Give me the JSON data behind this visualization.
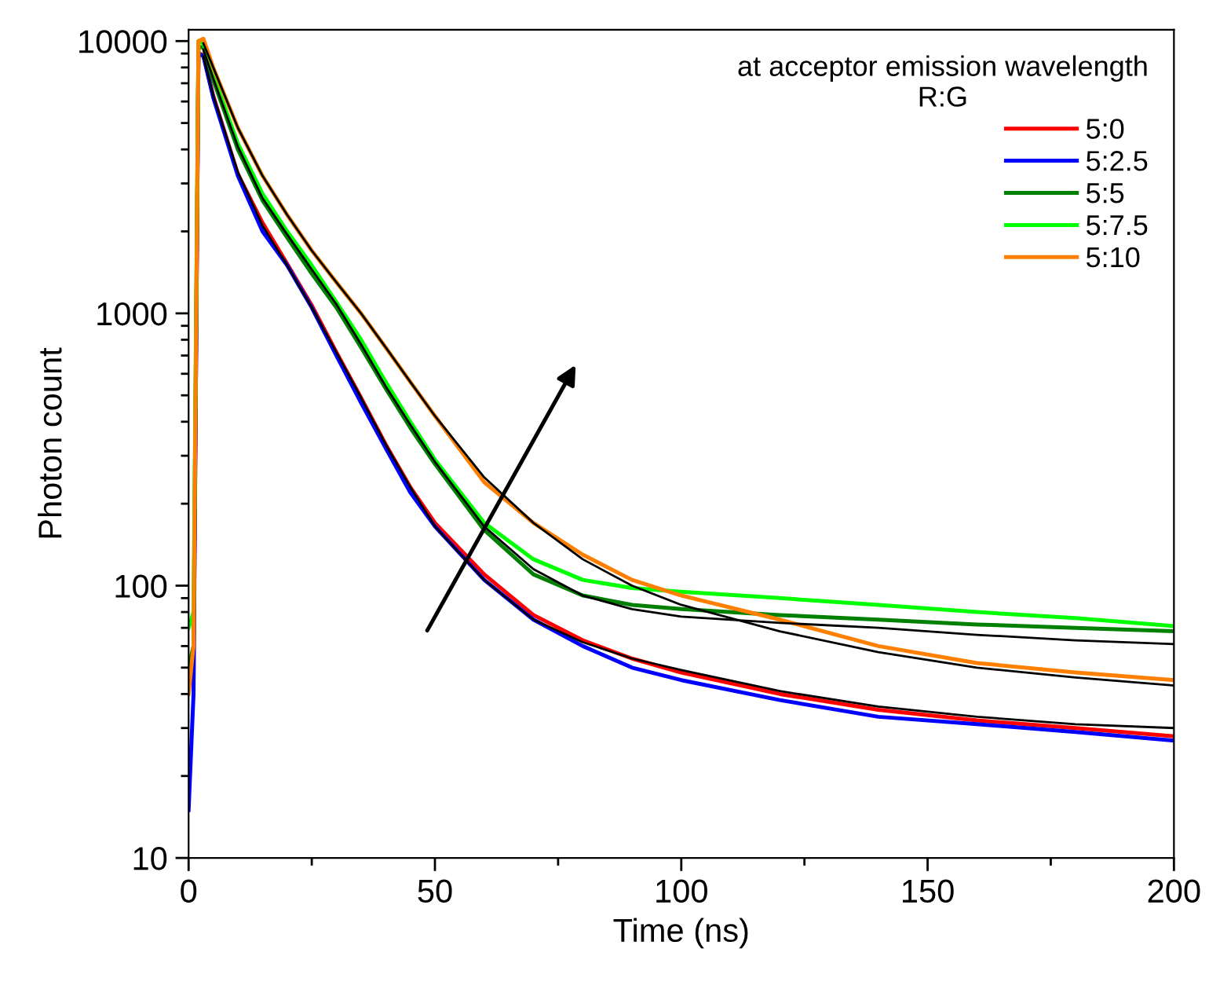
{
  "chart_data": {
    "type": "line",
    "xlabel": "Time (ns)",
    "ylabel": "Photon count",
    "legend_title": "at acceptor emission wavelength\nR:G",
    "log": "y",
    "xlim": [
      0,
      200
    ],
    "ylim": [
      10,
      11000
    ],
    "xticks": [
      0,
      50,
      100,
      150,
      200
    ],
    "yticks": [
      10,
      100,
      1000,
      10000
    ],
    "grid": false,
    "legend": "top right",
    "marker": "none",
    "line_style": "solid",
    "x": [
      0,
      1,
      2,
      3,
      5,
      10,
      15,
      20,
      25,
      30,
      35,
      40,
      45,
      50,
      60,
      70,
      80,
      90,
      100,
      120,
      140,
      160,
      180,
      200
    ],
    "series": [
      {
        "name": "5:0",
        "color": "#ff0000",
        "values": [
          null,
          45,
          9000,
          8900,
          6300,
          3250,
          2150,
          1520,
          1070,
          720,
          490,
          330,
          230,
          170,
          110,
          78,
          63,
          54,
          48,
          40,
          35,
          32,
          30,
          28
        ]
      },
      {
        "name": "5:2.5",
        "color": "#0000ff",
        "values": [
          15,
          40,
          9000,
          8800,
          6200,
          3200,
          2000,
          1500,
          1050,
          700,
          470,
          320,
          220,
          165,
          105,
          75,
          60,
          50,
          45,
          38,
          33,
          31,
          29,
          27
        ]
      },
      {
        "name": "5:5",
        "color": "#008000",
        "values": [
          50,
          60,
          9500,
          9500,
          7200,
          4000,
          2600,
          1900,
          1400,
          1050,
          750,
          530,
          380,
          280,
          160,
          110,
          92,
          85,
          82,
          78,
          75,
          72,
          70,
          68
        ]
      },
      {
        "name": "5:7.5",
        "color": "#00ff00",
        "values": [
          70,
          80,
          10000,
          9800,
          7500,
          4200,
          2750,
          2000,
          1500,
          1100,
          800,
          560,
          400,
          290,
          170,
          125,
          105,
          98,
          95,
          90,
          85,
          80,
          76,
          71
        ]
      },
      {
        "name": "5:10",
        "color": "#ff8000",
        "values": [
          40,
          60,
          10000,
          10200,
          8000,
          4800,
          3200,
          2300,
          1700,
          1300,
          1000,
          750,
          560,
          420,
          240,
          170,
          130,
          105,
          92,
          75,
          60,
          52,
          48,
          45
        ]
      },
      {
        "color": "#000000",
        "x": [
          3,
          5,
          10,
          15,
          20,
          25,
          30,
          35,
          40,
          45,
          50,
          60,
          70,
          80,
          90,
          100,
          120,
          140,
          160,
          180,
          200
        ],
        "values": [
          9800,
          8000,
          4800,
          3200,
          2300,
          1700,
          1300,
          1000,
          750,
          560,
          420,
          250,
          170,
          125,
          100,
          85,
          68,
          57,
          50,
          46,
          43
        ]
      },
      {
        "color": "#000000",
        "x": [
          3,
          5,
          10,
          15,
          20,
          25,
          30,
          35,
          40,
          45,
          50,
          60,
          70,
          80,
          90,
          100,
          120,
          140,
          160,
          180,
          200
        ],
        "values": [
          9300,
          7300,
          4100,
          2650,
          1950,
          1450,
          1080,
          770,
          540,
          390,
          285,
          165,
          115,
          92,
          82,
          77,
          73,
          70,
          66,
          63,
          61
        ]
      },
      {
        "color": "#000000",
        "x": [
          3,
          5,
          10,
          15,
          20,
          25,
          30,
          35,
          40,
          45,
          50,
          60,
          70,
          80,
          90,
          100,
          120,
          140,
          160,
          180,
          200
        ],
        "values": [
          8800,
          6300,
          3300,
          2100,
          1500,
          1050,
          720,
          490,
          330,
          230,
          165,
          105,
          75,
          62,
          54,
          49,
          41,
          36,
          33,
          31,
          30
        ]
      }
    ]
  }
}
